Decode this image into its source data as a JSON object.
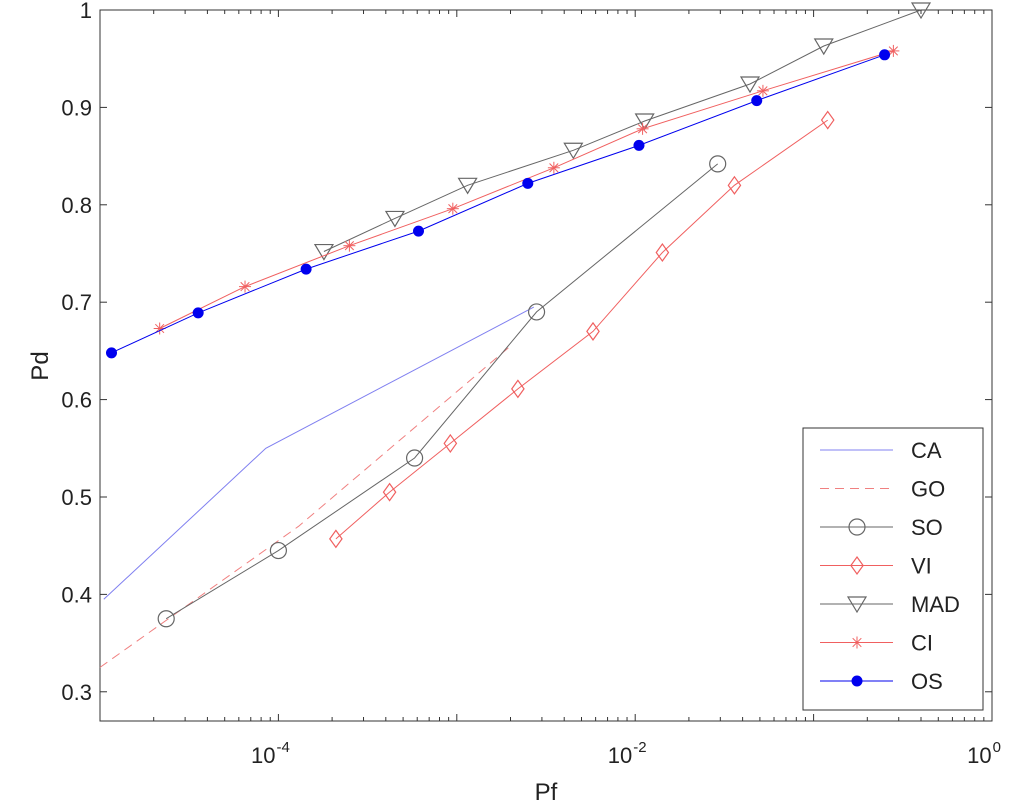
{
  "chart_data": {
    "type": "line",
    "xlabel": "Pf",
    "ylabel": "Pd",
    "xscale": "log",
    "xlim": [
      1e-05,
      1
    ],
    "ylim": [
      0.27,
      1.0
    ],
    "x_ticks": [
      0.0001,
      0.01,
      1
    ],
    "x_tick_labels": [
      {
        "base": "10",
        "exp": "-4"
      },
      {
        "base": "10",
        "exp": "-2"
      },
      {
        "base": "10",
        "exp": "0"
      }
    ],
    "y_ticks": [
      0.3,
      0.4,
      0.5,
      0.6,
      0.7,
      0.8,
      0.9,
      1
    ],
    "y_tick_labels": [
      "0.3",
      "0.4",
      "0.5",
      "0.6",
      "0.7",
      "0.8",
      "0.9",
      "1"
    ],
    "grid": false,
    "legend_position": "bottom-right",
    "series": [
      {
        "name": "CA",
        "color": "#8080f0",
        "dash": "solid",
        "marker": "none",
        "x": [
          1.05e-05,
          8.5e-05,
          0.0027
        ],
        "y": [
          0.395,
          0.55,
          0.695
        ]
      },
      {
        "name": "GO",
        "color": "#f08080",
        "dash": "dashed",
        "marker": "none",
        "x": [
          1e-05,
          0.00013,
          0.002
        ],
        "y": [
          0.325,
          0.47,
          0.655
        ]
      },
      {
        "name": "SO",
        "color": "#666666",
        "dash": "solid",
        "marker": "circle",
        "x": [
          2.35e-05,
          0.0001,
          0.00058,
          0.0028,
          0.029
        ],
        "y": [
          0.375,
          0.445,
          0.54,
          0.69,
          0.842
        ]
      },
      {
        "name": "VI",
        "color": "#f06060",
        "dash": "solid",
        "marker": "diamond",
        "x": [
          0.00021,
          0.00042,
          0.00092,
          0.0022,
          0.0058,
          0.0142,
          0.036,
          0.12
        ],
        "y": [
          0.457,
          0.505,
          0.555,
          0.611,
          0.67,
          0.751,
          0.82,
          0.887
        ]
      },
      {
        "name": "MAD",
        "color": "#666666",
        "dash": "solid",
        "marker": "triangle",
        "x": [
          0.00018,
          0.00045,
          0.00115,
          0.0045,
          0.0113,
          0.044,
          0.114,
          0.4
        ],
        "y": [
          0.752,
          0.786,
          0.82,
          0.856,
          0.886,
          0.924,
          0.963,
          1.0
        ]
      },
      {
        "name": "CI",
        "color": "#f06060",
        "dash": "solid",
        "marker": "asterisk",
        "x": [
          2.16e-05,
          6.5e-05,
          0.00025,
          0.00095,
          0.0035,
          0.011,
          0.052,
          0.28
        ],
        "y": [
          0.673,
          0.716,
          0.758,
          0.796,
          0.838,
          0.878,
          0.917,
          0.958
        ]
      },
      {
        "name": "OS",
        "color": "#0000ee",
        "dash": "solid",
        "marker": "dot",
        "x": [
          1.16e-05,
          3.55e-05,
          0.000143,
          0.00061,
          0.0025,
          0.0105,
          0.048,
          0.25
        ],
        "y": [
          0.648,
          0.689,
          0.734,
          0.773,
          0.822,
          0.861,
          0.907,
          0.954
        ]
      }
    ]
  }
}
